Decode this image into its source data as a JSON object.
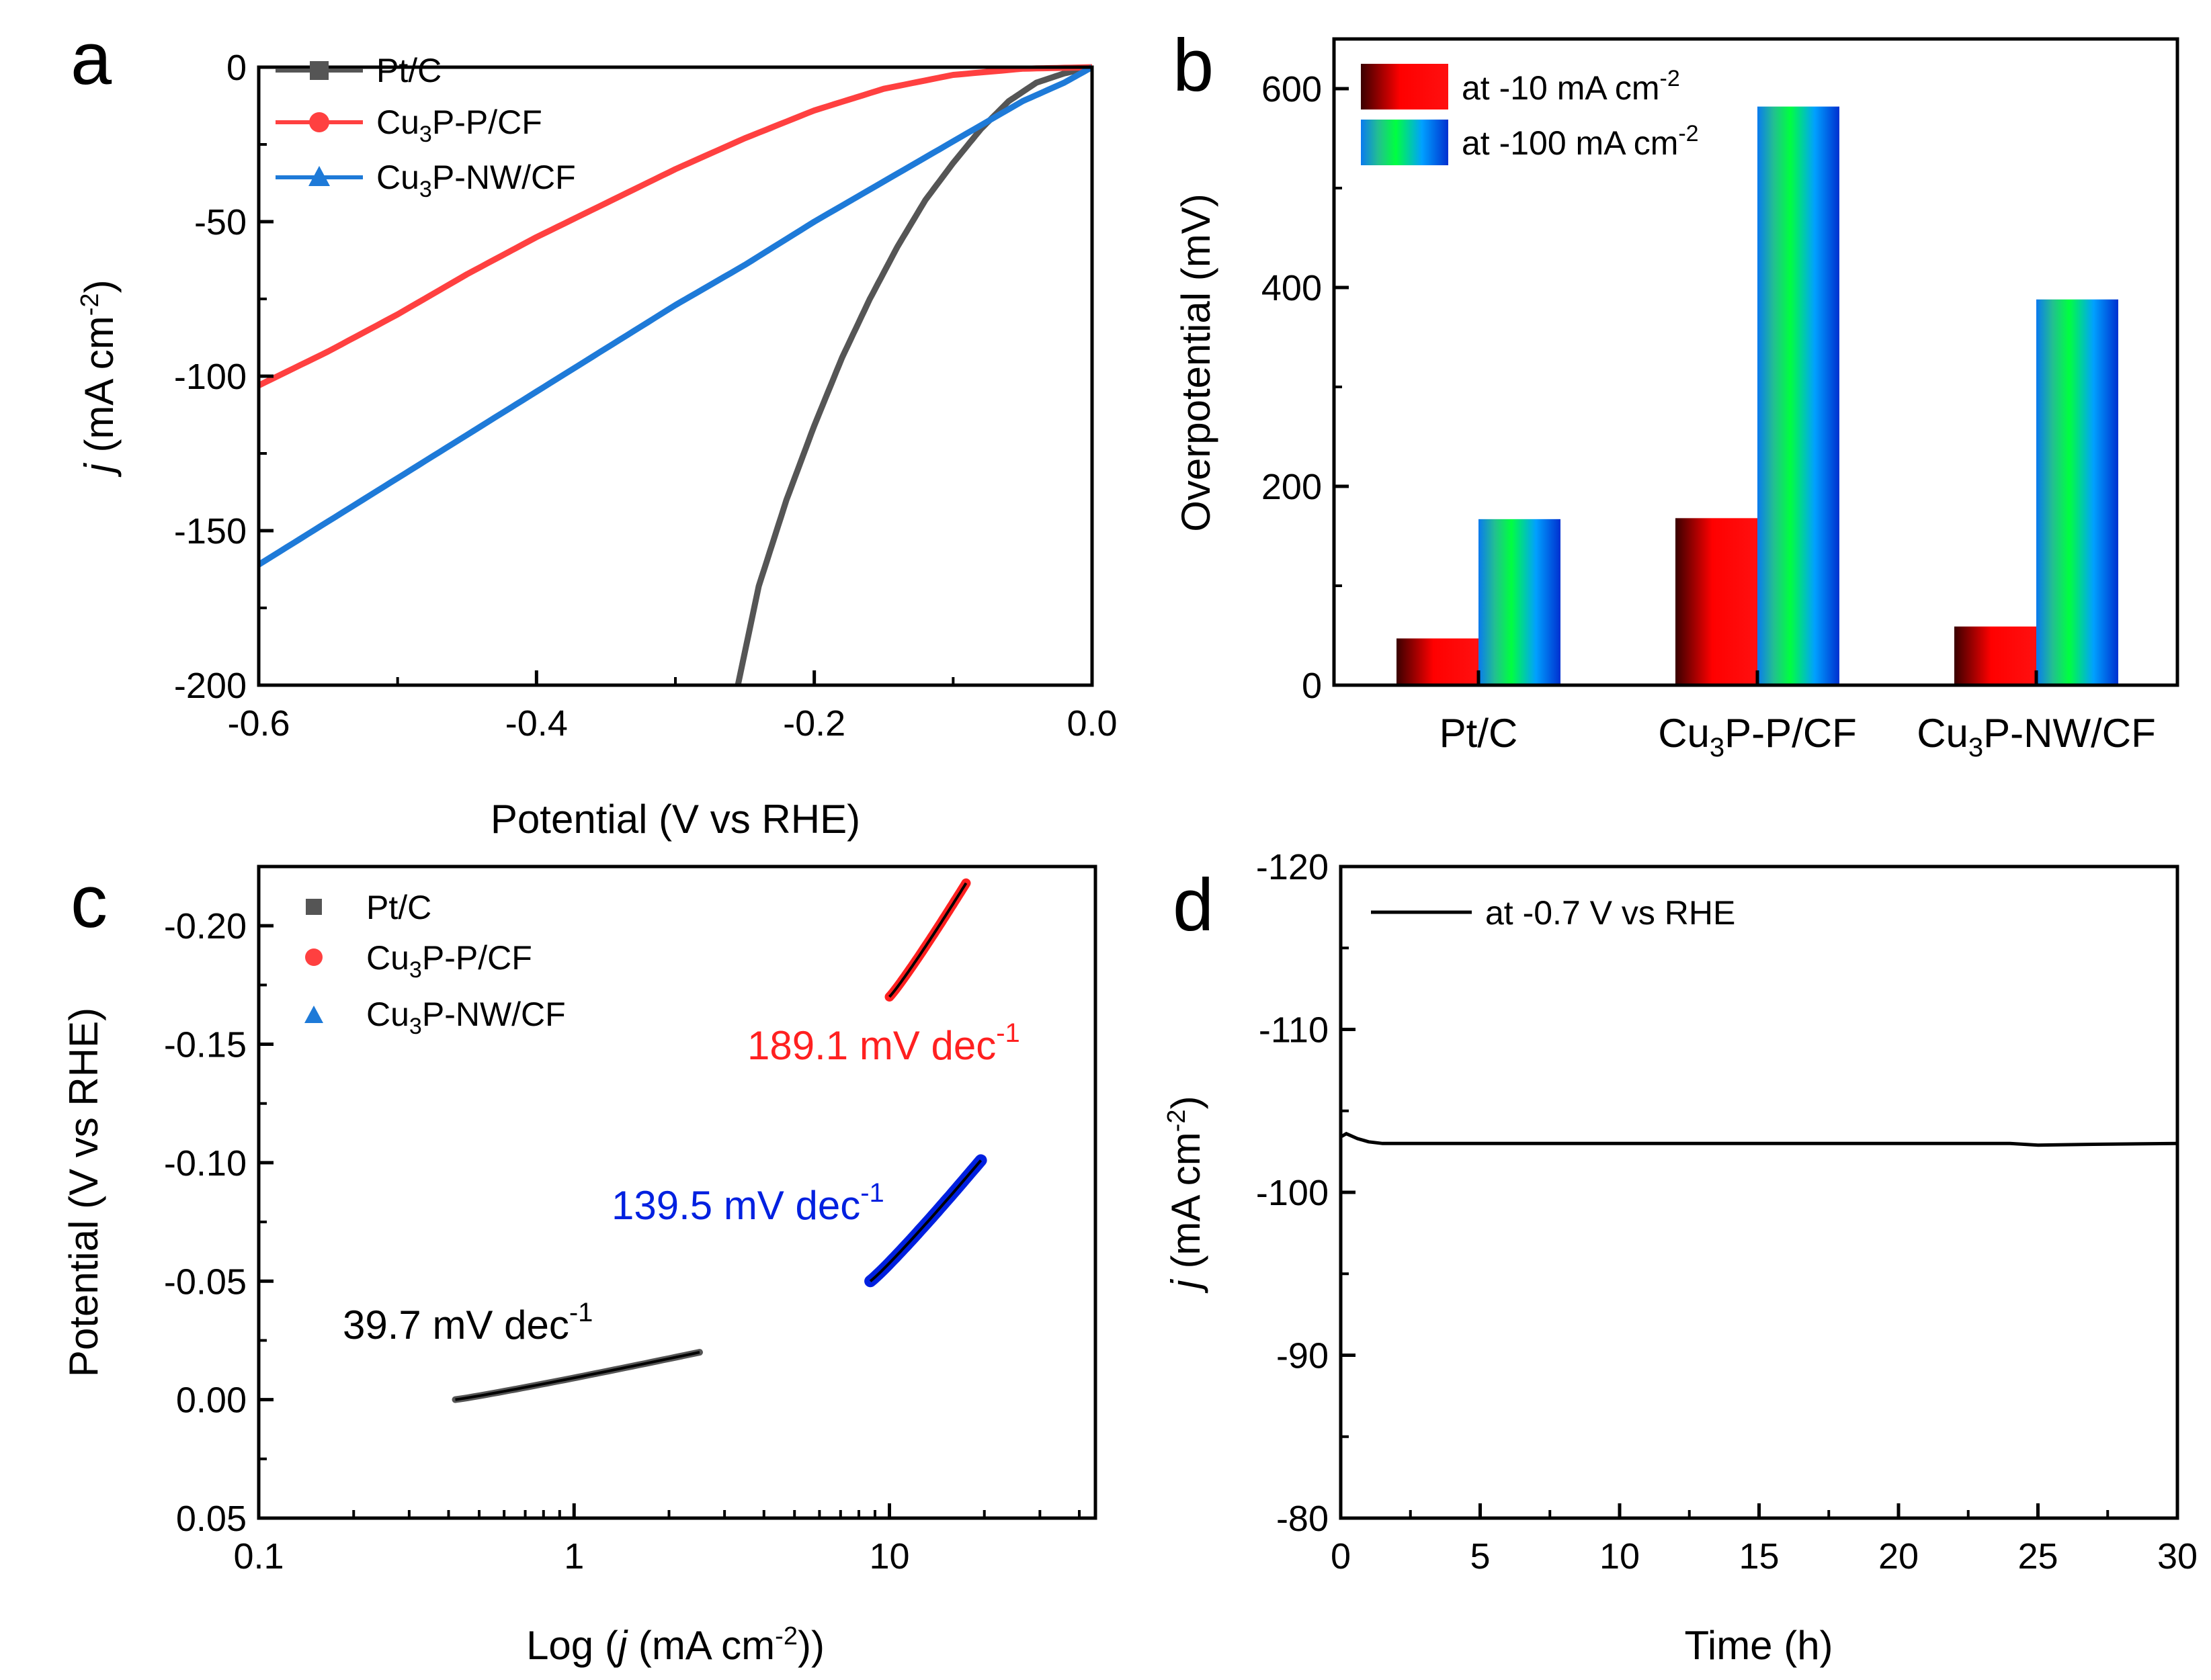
{
  "colors": {
    "ptc": "#555555",
    "cu3p_p": "#ff4040",
    "cu3p_nw": "#1e7ad8",
    "tafel_nw": "#0020e0",
    "tafel_p": "#ff2020",
    "black": "#000000"
  },
  "chart_data": [
    {
      "panel": "a",
      "type": "line",
      "xlabel_pre": "Potential (V vs RHE)",
      "ylabel_j": "j",
      "ylabel_rest": " (mA cm",
      "ylabel_sup": "-2",
      "ylabel_end": ")",
      "xlim": [
        -0.6,
        0.0
      ],
      "ylim": [
        -200,
        0
      ],
      "xticks": [
        -0.6,
        -0.4,
        -0.2,
        0.0
      ],
      "xtick_labels": [
        "-0.6",
        "-0.4",
        "-0.2",
        "0.0"
      ],
      "yticks": [
        0,
        -50,
        -100,
        -150,
        -200
      ],
      "ytick_labels": [
        "0",
        "-50",
        "-100",
        "-150",
        "-200"
      ],
      "legend": [
        "Pt/C",
        "Cu3P-P/CF",
        "Cu3P-NW/CF"
      ],
      "series": [
        {
          "name": "Pt/C",
          "color": "#555555",
          "x": [
            -0.255,
            -0.24,
            -0.22,
            -0.2,
            -0.18,
            -0.16,
            -0.14,
            -0.12,
            -0.1,
            -0.08,
            -0.06,
            -0.04,
            -0.02,
            0.0
          ],
          "y": [
            -200,
            -168,
            -140,
            -116,
            -94,
            -75,
            -58,
            -43,
            -31,
            -20,
            -11,
            -5,
            -2,
            0
          ]
        },
        {
          "name": "Cu3P-P/CF",
          "color": "#ff4040",
          "x": [
            -0.6,
            -0.55,
            -0.5,
            -0.45,
            -0.4,
            -0.35,
            -0.3,
            -0.25,
            -0.2,
            -0.15,
            -0.1,
            -0.05,
            0.0
          ],
          "y": [
            -103,
            -92,
            -80,
            -67,
            -55,
            -44,
            -33,
            -23,
            -14,
            -7,
            -2.5,
            -0.5,
            0
          ]
        },
        {
          "name": "Cu3P-NW/CF",
          "color": "#1e7ad8",
          "x": [
            -0.6,
            -0.55,
            -0.5,
            -0.45,
            -0.4,
            -0.35,
            -0.3,
            -0.25,
            -0.2,
            -0.15,
            -0.1,
            -0.05,
            -0.02,
            0.0
          ],
          "y": [
            -161,
            -147,
            -133,
            -119,
            -105,
            -91,
            -77,
            -64,
            -50,
            -37,
            -24,
            -11,
            -5,
            0
          ]
        }
      ]
    },
    {
      "panel": "b",
      "type": "bar",
      "ylabel": "Overpotential (mV)",
      "ylim": [
        0,
        650
      ],
      "yticks": [
        0,
        200,
        400,
        600
      ],
      "ytick_labels": [
        "0",
        "200",
        "400",
        "600"
      ],
      "categories": [
        "Pt/C",
        "Cu3P-P/CF",
        "Cu3P-NW/CF"
      ],
      "legend": [
        "at -10 mA cm-2",
        "at -100 mA cm-2"
      ],
      "series": [
        {
          "name": "at -10 mA cm-2",
          "values": [
            47,
            168,
            59
          ]
        },
        {
          "name": "at -100 mA cm-2",
          "values": [
            167,
            582,
            388
          ]
        }
      ]
    },
    {
      "panel": "c",
      "type": "scatter",
      "xlabel_pre": "Log (",
      "xlabel_j": "j",
      "xlabel_mid": " (mA cm",
      "xlabel_sup": "-2",
      "xlabel_end": "))",
      "ylabel": "Potential (V vs RHE)",
      "xscale": "log",
      "xlim": [
        0.1,
        45
      ],
      "ylim": [
        0.05,
        -0.225
      ],
      "xticks": [
        0.1,
        1,
        10
      ],
      "xtick_labels": [
        "0.1",
        "1",
        "10"
      ],
      "yticks": [
        -0.2,
        -0.15,
        -0.1,
        -0.05,
        0.0,
        0.05
      ],
      "ytick_labels": [
        "-0.20",
        "-0.15",
        "-0.10",
        "-0.05",
        "0.00",
        "0.05"
      ],
      "legend": [
        "Pt/C",
        "Cu3P-P/CF",
        "Cu3P-NW/CF"
      ],
      "series": [
        {
          "name": "Pt/C",
          "color": "#555555",
          "slope_label": "39.7 mV dec",
          "slope_sup": "-1",
          "x_range": [
            0.42,
            2.5
          ],
          "y_range": [
            0.0,
            -0.02
          ]
        },
        {
          "name": "Cu3P-P/CF",
          "color": "#ff2020",
          "slope_label": "189.1 mV dec",
          "slope_sup": "-1",
          "x_range": [
            10.0,
            17.5
          ],
          "y_range": [
            -0.17,
            -0.218
          ]
        },
        {
          "name": "Cu3P-NW/CF",
          "color": "#0020e0",
          "slope_label": "139.5 mV dec",
          "slope_sup": "-1",
          "x_range": [
            8.7,
            19.5
          ],
          "y_range": [
            -0.05,
            -0.101
          ]
        }
      ]
    },
    {
      "panel": "d",
      "type": "line",
      "xlabel": "Time (h)",
      "ylabel_j": "j",
      "ylabel_rest": " (mA cm",
      "ylabel_sup": "-2",
      "ylabel_end": ")",
      "xlim": [
        0,
        30
      ],
      "ylim": [
        -80,
        -120
      ],
      "xticks": [
        0,
        5,
        10,
        15,
        20,
        25,
        30
      ],
      "xtick_labels": [
        "0",
        "5",
        "10",
        "15",
        "20",
        "25",
        "30"
      ],
      "yticks": [
        -120,
        -110,
        -100,
        -90,
        -80
      ],
      "ytick_labels": [
        "-120",
        "-110",
        "-100",
        "-90",
        "-80"
      ],
      "legend": [
        "at -0.7 V vs RHE"
      ],
      "series": [
        {
          "name": "at -0.7 V vs RHE",
          "color": "#000000",
          "x": [
            0,
            0.2,
            0.6,
            1.0,
            1.5,
            2,
            5,
            10,
            15,
            20,
            24,
            25,
            27,
            30
          ],
          "y": [
            -103.4,
            -103.6,
            -103.3,
            -103.1,
            -103.0,
            -103.0,
            -103.0,
            -103.0,
            -103.0,
            -103.0,
            -103.0,
            -102.9,
            -102.95,
            -103.0
          ]
        }
      ]
    }
  ]
}
